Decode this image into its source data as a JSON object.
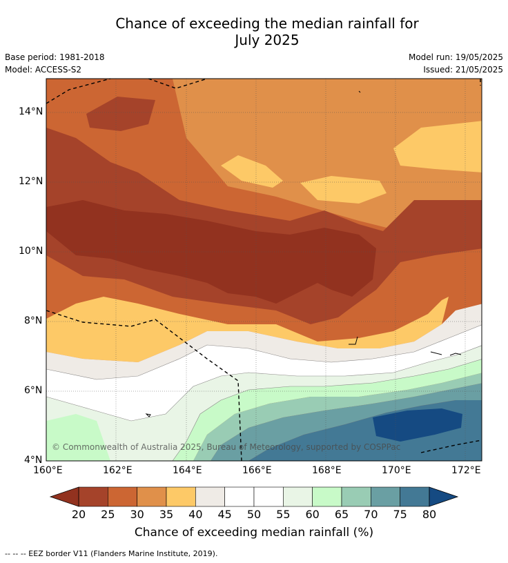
{
  "title_line1": "Chance of exceeding the median rainfall for",
  "title_line2": "July 2025",
  "base_period": "Base period: 1981-2018",
  "model": "Model: ACCESS-S2",
  "model_run": "Model run: 19/05/2025",
  "issued": "Issued: 21/05/2025",
  "lat_ticks": [
    "14°N",
    "12°N",
    "10°N",
    "8°N",
    "6°N",
    "4°N"
  ],
  "lon_ticks": [
    "160°E",
    "162°E",
    "164°E",
    "166°E",
    "168°E",
    "170°E",
    "172°E"
  ],
  "copyright": "© Commonwealth of Australia 2025, Bureau of Meteorology, supported by COSPPac",
  "colorbar": {
    "label": "Chance of exceeding median rainfall (%)",
    "ticks": [
      "20",
      "25",
      "30",
      "35",
      "40",
      "45",
      "50",
      "55",
      "60",
      "65",
      "70",
      "75",
      "80"
    ],
    "colors": [
      "#a5432a",
      "#cc6633",
      "#e0904a",
      "#fdc967",
      "#efebe6",
      "#ffffff",
      "#ffffff",
      "#e9f5e6",
      "#c8fac8",
      "#99ccb4",
      "#6a9fa3",
      "#437995"
    ],
    "under_color": "#92321f",
    "over_color": "#154a82"
  },
  "legend_text": "--  --  -- EEZ border V11 (Flanders Marine Institute, 2019)."
}
